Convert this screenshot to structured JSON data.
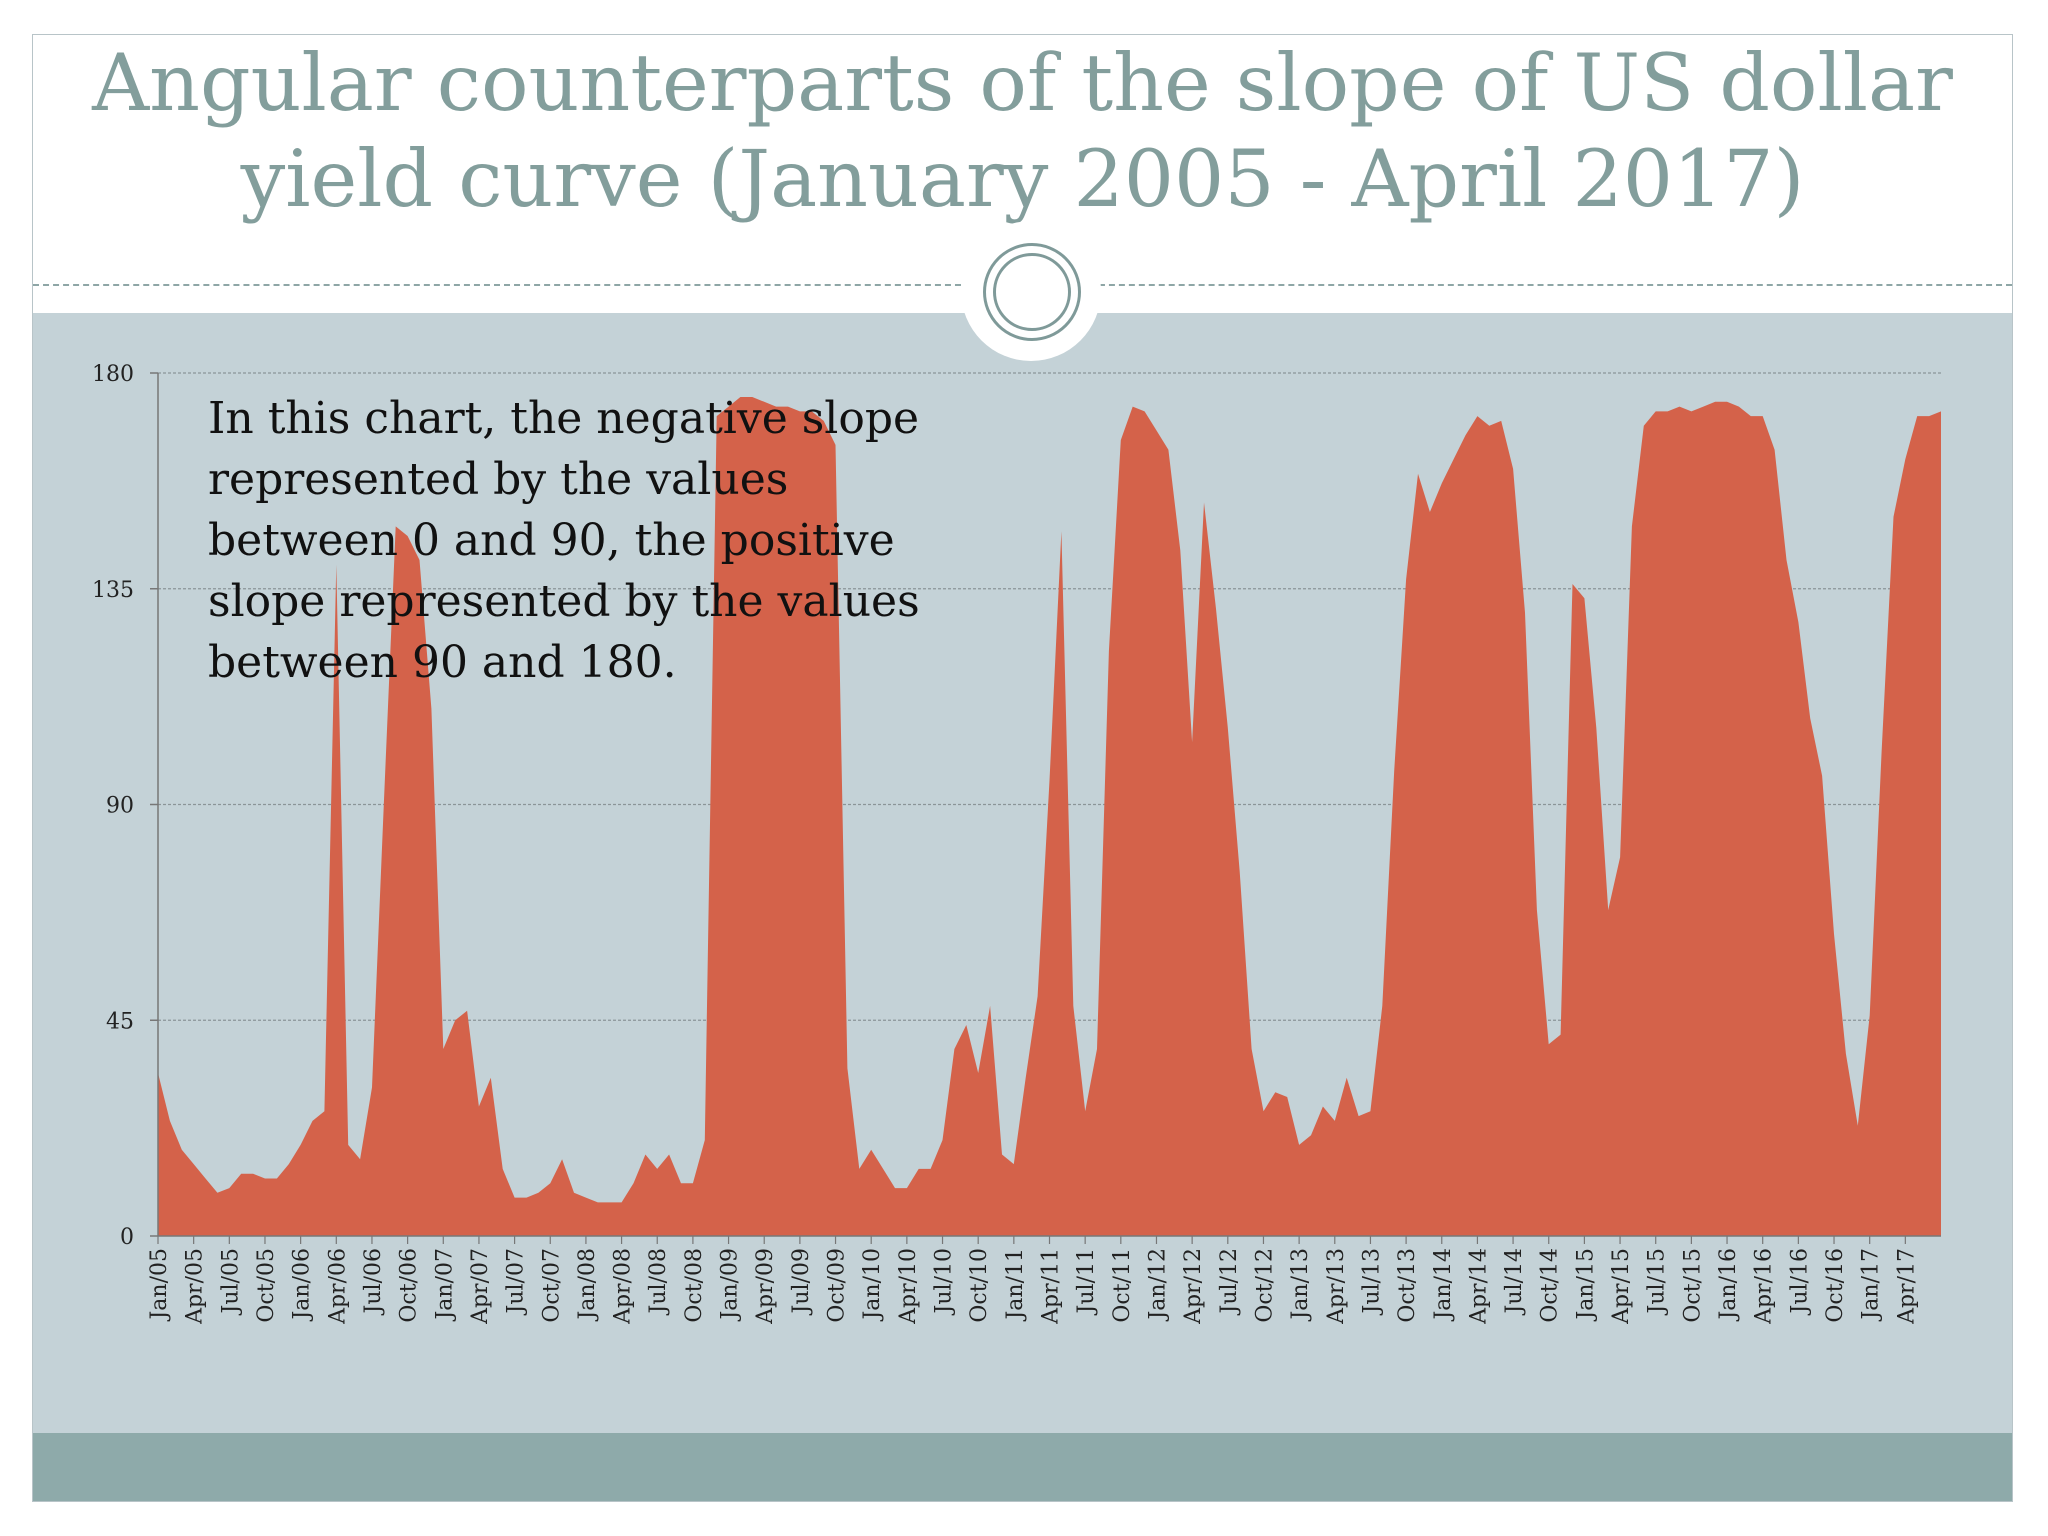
{
  "slide": {
    "title_line1": "Angular counterparts of the slope of US dollar",
    "title_line2": "yield curve (January 2005 - April 2017)",
    "annotation": "In this chart, the negative slope\nrepresented by the values\nbetween 0  and 90, the positive\nslope represented by the values\nbetween 90 and 180."
  },
  "colors": {
    "area_fill": "#d4624a",
    "plot_background": "#c4d2d7",
    "gridline": "#8b9598",
    "title": "#839e9c",
    "bottom_band": "#8eaaaa"
  },
  "chart_data": {
    "type": "area",
    "title": "Angular counterparts of the slope of US dollar yield curve (January 2005 - April 2017)",
    "xlabel": "",
    "ylabel": "",
    "ylim": [
      0,
      180
    ],
    "yticks": [
      "0",
      "45",
      "90",
      "135",
      "180"
    ],
    "grid": true,
    "legend": "none",
    "x_tick_labels": [
      "Jan/05",
      "Apr/05",
      "Jul/05",
      "Oct/05",
      "Jan/06",
      "Apr/06",
      "Jul/06",
      "Oct/06",
      "Jan/07",
      "Apr/07",
      "Jul/07",
      "Oct/07",
      "Jan/08",
      "Apr/08",
      "Jul/08",
      "Oct/08",
      "Jan/09",
      "Apr/09",
      "Jul/09",
      "Oct/09",
      "Jan/10",
      "Apr/10",
      "Jul/10",
      "Oct/10",
      "Jan/11",
      "Apr/11",
      "Jul/11",
      "Oct/11",
      "Jan/12",
      "Apr/12",
      "Jul/12",
      "Oct/12",
      "Jan/13",
      "Apr/13",
      "Jul/13",
      "Oct/13",
      "Jan/14",
      "Apr/14",
      "Jul/14",
      "Oct/14",
      "Jan/15",
      "Apr/15",
      "Jul/15",
      "Oct/15",
      "Jan/16",
      "Apr/16",
      "Jul/16",
      "Oct/16",
      "Jan/17",
      "Apr/17"
    ],
    "series": [
      {
        "x_start": "Jan/05",
        "frequency": "monthly",
        "values": [
          34,
          24,
          18,
          15,
          12,
          9,
          10,
          13,
          13,
          12,
          12,
          15,
          19,
          24,
          26,
          140,
          19,
          16,
          31,
          90,
          148,
          146,
          141,
          110,
          39,
          45,
          47,
          27,
          33,
          14,
          8,
          8,
          9,
          11,
          16,
          9,
          8,
          7,
          7,
          7,
          11,
          17,
          14,
          17,
          11,
          11,
          20,
          171,
          173,
          175,
          175,
          174,
          173,
          173,
          172,
          172,
          170,
          165,
          35,
          14,
          18,
          14,
          10,
          10,
          14,
          14,
          20,
          39,
          44,
          34,
          48,
          17,
          15,
          33,
          50,
          95,
          147,
          48,
          26,
          39,
          122,
          166,
          173,
          172,
          168,
          164,
          143,
          103,
          153,
          131,
          106,
          76,
          39,
          26,
          30,
          29,
          19,
          21,
          27,
          24,
          33,
          25,
          26,
          48,
          97,
          137,
          159,
          151,
          157,
          162,
          167,
          171,
          169,
          170,
          160,
          130,
          68,
          40,
          42,
          136,
          133,
          106,
          68,
          79,
          148,
          169,
          172,
          172,
          173,
          172,
          173,
          174,
          174,
          173,
          171,
          171,
          164,
          141,
          128,
          108,
          96,
          63,
          38,
          23,
          46,
          101,
          150,
          162,
          171,
          171,
          172
        ]
      }
    ]
  }
}
